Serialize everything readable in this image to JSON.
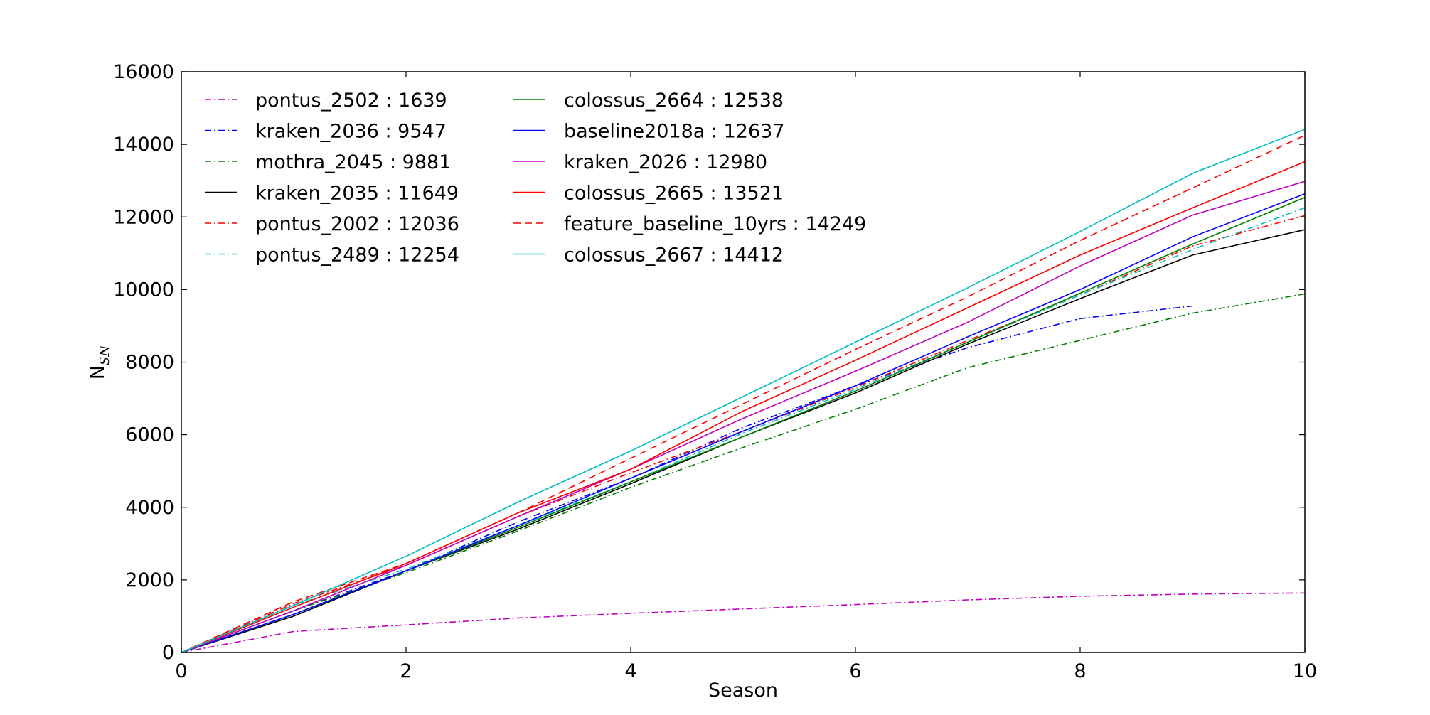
{
  "chart_data": {
    "type": "line",
    "title": "",
    "xlabel": "Season",
    "ylabel": "N",
    "ylabel_subscript": "SN",
    "xlim": [
      0,
      10
    ],
    "ylim": [
      0,
      16000
    ],
    "xticks": [
      0,
      2,
      4,
      6,
      8,
      10
    ],
    "yticks": [
      0,
      2000,
      4000,
      6000,
      8000,
      10000,
      12000,
      14000,
      16000
    ],
    "grid": false,
    "legend_position": "upper-left",
    "series": [
      {
        "name": "pontus_2502 : 1639",
        "color": "#bf00bf",
        "dash": "dashdot",
        "x": [
          0,
          1,
          2,
          3,
          4,
          5,
          6,
          7,
          8,
          9,
          10
        ],
        "y": [
          0,
          580,
          760,
          950,
          1080,
          1200,
          1320,
          1450,
          1550,
          1610,
          1639
        ]
      },
      {
        "name": "kraken_2036 : 9547",
        "color": "#0000ff",
        "dash": "dashdot",
        "x": [
          0,
          1,
          2,
          3,
          4,
          5,
          6,
          7,
          8,
          9
        ],
        "y": [
          0,
          1150,
          2250,
          3600,
          4800,
          6200,
          7350,
          8400,
          9200,
          9547
        ]
      },
      {
        "name": "mothra_2045 : 9881",
        "color": "#008000",
        "dash": "dashdot",
        "x": [
          0,
          1,
          2,
          3,
          4,
          5,
          6,
          7,
          8,
          9,
          10
        ],
        "y": [
          0,
          1150,
          2200,
          3350,
          4550,
          5650,
          6700,
          7850,
          8600,
          9350,
          9881
        ]
      },
      {
        "name": "kraken_2035 : 11649",
        "color": "#000000",
        "dash": "solid",
        "x": [
          0,
          1,
          2,
          3,
          4,
          5,
          6,
          7,
          8,
          9,
          10
        ],
        "y": [
          0,
          1000,
          2250,
          3400,
          4650,
          5950,
          7150,
          8500,
          9750,
          10950,
          11649
        ]
      },
      {
        "name": "pontus_2002 : 12036",
        "color": "#ff0000",
        "dash": "dashdot",
        "x": [
          0,
          1,
          2,
          3,
          4,
          5,
          6,
          7,
          8,
          9,
          10
        ],
        "y": [
          0,
          1350,
          2400,
          3750,
          4950,
          6100,
          7300,
          8600,
          9850,
          11200,
          12036
        ]
      },
      {
        "name": "pontus_2489 : 12254",
        "color": "#00bfbf",
        "dash": "dashdot",
        "x": [
          0,
          1,
          2,
          3,
          4,
          5,
          6,
          7,
          8,
          9,
          10
        ],
        "y": [
          0,
          1300,
          2300,
          3500,
          4700,
          6050,
          7250,
          8550,
          9850,
          11100,
          12254
        ]
      },
      {
        "name": "colossus_2664 : 12538",
        "color": "#008000",
        "dash": "solid",
        "x": [
          0,
          1,
          2,
          3,
          4,
          5,
          6,
          7,
          8,
          9,
          10
        ],
        "y": [
          0,
          1050,
          2250,
          3450,
          4700,
          5950,
          7200,
          8550,
          9900,
          11250,
          12538
        ]
      },
      {
        "name": "baseline2018a : 12637",
        "color": "#0000ff",
        "dash": "solid",
        "x": [
          0,
          1,
          2,
          3,
          4,
          5,
          6,
          7,
          8,
          9,
          10
        ],
        "y": [
          0,
          1050,
          2250,
          3500,
          4800,
          6100,
          7350,
          8700,
          10000,
          11450,
          12637
        ]
      },
      {
        "name": "kraken_2026 : 12980",
        "color": "#bf00bf",
        "dash": "solid",
        "x": [
          0,
          1,
          2,
          3,
          4,
          5,
          6,
          7,
          8,
          9,
          10
        ],
        "y": [
          0,
          1150,
          2400,
          3750,
          5050,
          6450,
          7750,
          9100,
          10650,
          12050,
          12980
        ]
      },
      {
        "name": "colossus_2665 : 13521",
        "color": "#ff0000",
        "dash": "solid",
        "x": [
          0,
          1,
          2,
          3,
          4,
          5,
          6,
          7,
          8,
          9,
          10
        ],
        "y": [
          0,
          1250,
          2450,
          3850,
          5050,
          6650,
          8050,
          9500,
          10950,
          12250,
          13521
        ]
      },
      {
        "name": "feature_baseline_10yrs : 14249",
        "color": "#ff0000",
        "dash": "dashed",
        "x": [
          0,
          1,
          2,
          3,
          4,
          5,
          6,
          7,
          8,
          9,
          10
        ],
        "y": [
          0,
          1400,
          2450,
          3850,
          5350,
          6850,
          8350,
          9800,
          11350,
          12800,
          14249
        ]
      },
      {
        "name": "colossus_2667 : 14412",
        "color": "#00bfbf",
        "dash": "solid",
        "x": [
          0,
          1,
          2,
          3,
          4,
          5,
          6,
          7,
          8,
          9,
          10
        ],
        "y": [
          0,
          1300,
          2650,
          4150,
          5550,
          7050,
          8550,
          10050,
          11600,
          13200,
          14412
        ]
      }
    ]
  }
}
